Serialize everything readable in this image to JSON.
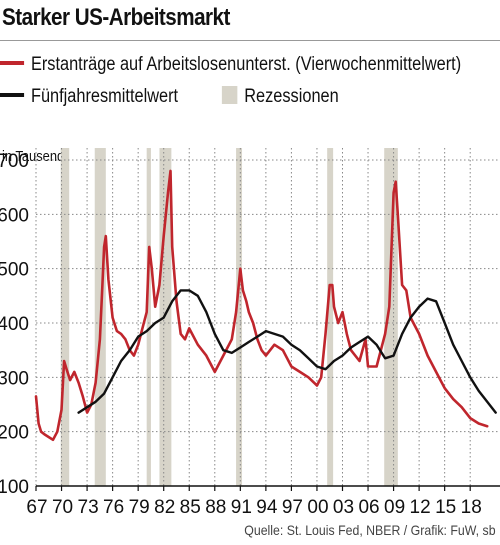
{
  "title": "Starker US-Arbeitsmarkt",
  "legend": {
    "claims_label": "Erstanträge auf Arbeitslosenunterst. (Vierwochenmittelwert)",
    "average_label": "Fünfjahresmittelwert",
    "recession_label": "Rezessionen"
  },
  "y_unit_label": "in Tausend",
  "source": "Quelle: St. Louis Fed, NBER / Grafik: FuW, sb",
  "colors": {
    "claims": "#c0262d",
    "average": "#111111",
    "recession": "#d7d4c9",
    "grid": "#888888"
  },
  "chart_data": {
    "type": "line",
    "title": "Starker US-Arbeitsmarkt",
    "ylabel": "in Tausend",
    "xlabel": "",
    "xlim": [
      1967,
      2021.5
    ],
    "ylim": [
      100,
      700
    ],
    "x_ticks": [
      1967,
      1970,
      1973,
      1976,
      1979,
      1982,
      1985,
      1988,
      1991,
      1994,
      1997,
      2000,
      2003,
      2006,
      2009,
      2012,
      2015,
      2018
    ],
    "x_tick_labels": [
      "67",
      "70",
      "73",
      "76",
      "79",
      "82",
      "85",
      "88",
      "91",
      "94",
      "97",
      "00",
      "03",
      "06",
      "09",
      "12",
      "15",
      "18"
    ],
    "y_ticks": [
      100,
      200,
      300,
      400,
      500,
      600,
      700
    ],
    "y_tick_labels": [
      "100",
      "200",
      "300",
      "400",
      "500",
      "600",
      "700"
    ],
    "grid": true,
    "recessions": [
      [
        1969.9,
        1970.9
      ],
      [
        1973.9,
        1975.2
      ],
      [
        1980.0,
        1980.5
      ],
      [
        1981.5,
        1982.9
      ],
      [
        1990.5,
        1991.2
      ],
      [
        2001.2,
        2001.9
      ],
      [
        2007.9,
        2009.5
      ]
    ],
    "series": [
      {
        "name": "Erstanträge auf Arbeitslosenunterst. (Vierwochenmittelwert)",
        "x": [
          1967.0,
          1967.3,
          1967.6,
          1968.0,
          1968.5,
          1969.0,
          1969.5,
          1970.0,
          1970.3,
          1970.6,
          1971.0,
          1971.5,
          1972.0,
          1972.5,
          1973.0,
          1973.5,
          1974.0,
          1974.5,
          1974.8,
          1975.0,
          1975.2,
          1975.5,
          1976.0,
          1976.5,
          1977.0,
          1977.5,
          1978.0,
          1978.5,
          1979.0,
          1979.5,
          1980.0,
          1980.3,
          1980.6,
          1981.0,
          1981.5,
          1982.0,
          1982.5,
          1982.8,
          1983.0,
          1983.5,
          1984.0,
          1984.5,
          1985.0,
          1986.0,
          1987.0,
          1988.0,
          1989.0,
          1990.0,
          1990.5,
          1991.0,
          1991.3,
          1991.7,
          1992.0,
          1992.5,
          1993.0,
          1993.5,
          1994.0,
          1995.0,
          1996.0,
          1997.0,
          1998.0,
          1999.0,
          2000.0,
          2000.5,
          2001.0,
          2001.5,
          2001.8,
          2002.0,
          2002.5,
          2003.0,
          2003.5,
          2004.0,
          2005.0,
          2005.7,
          2006.0,
          2007.0,
          2008.0,
          2008.5,
          2009.0,
          2009.25,
          2009.5,
          2010.0,
          2010.5,
          2011.0,
          2012.0,
          2013.0,
          2014.0,
          2015.0,
          2016.0,
          2017.0,
          2018.0,
          2019.0,
          2020.0
        ],
        "values": [
          265,
          215,
          200,
          195,
          190,
          185,
          200,
          240,
          330,
          315,
          295,
          310,
          290,
          265,
          235,
          250,
          290,
          370,
          470,
          540,
          560,
          480,
          410,
          385,
          380,
          370,
          350,
          340,
          360,
          390,
          420,
          540,
          500,
          430,
          470,
          560,
          640,
          680,
          540,
          440,
          380,
          370,
          390,
          360,
          340,
          310,
          340,
          370,
          420,
          500,
          460,
          440,
          420,
          400,
          370,
          350,
          340,
          360,
          350,
          320,
          310,
          300,
          285,
          300,
          380,
          470,
          470,
          430,
          400,
          420,
          380,
          350,
          330,
          370,
          320,
          320,
          380,
          430,
          640,
          660,
          600,
          470,
          460,
          410,
          380,
          340,
          310,
          280,
          260,
          245,
          225,
          215,
          210
        ]
      },
      {
        "name": "Fünfjahresmittelwert",
        "x": [
          1972.0,
          1973.0,
          1974.0,
          1975.0,
          1976.0,
          1977.0,
          1978.0,
          1979.0,
          1980.0,
          1981.0,
          1982.0,
          1983.0,
          1984.0,
          1985.0,
          1986.0,
          1987.0,
          1988.0,
          1989.0,
          1990.0,
          1991.0,
          1992.0,
          1993.0,
          1994.0,
          1995.0,
          1996.0,
          1997.0,
          1998.0,
          1999.0,
          2000.0,
          2001.0,
          2002.0,
          2003.0,
          2004.0,
          2005.0,
          2006.0,
          2007.0,
          2008.0,
          2009.0,
          2010.0,
          2011.0,
          2012.0,
          2013.0,
          2014.0,
          2015.0,
          2016.0,
          2017.0,
          2018.0,
          2019.0,
          2020.0,
          2021.0
        ],
        "values": [
          235,
          245,
          255,
          270,
          300,
          330,
          350,
          375,
          385,
          400,
          410,
          440,
          460,
          460,
          450,
          420,
          380,
          350,
          345,
          355,
          365,
          375,
          385,
          380,
          375,
          360,
          350,
          335,
          320,
          315,
          330,
          340,
          355,
          365,
          375,
          360,
          335,
          340,
          380,
          410,
          430,
          445,
          440,
          400,
          360,
          330,
          300,
          275,
          255,
          235
        ]
      }
    ]
  }
}
